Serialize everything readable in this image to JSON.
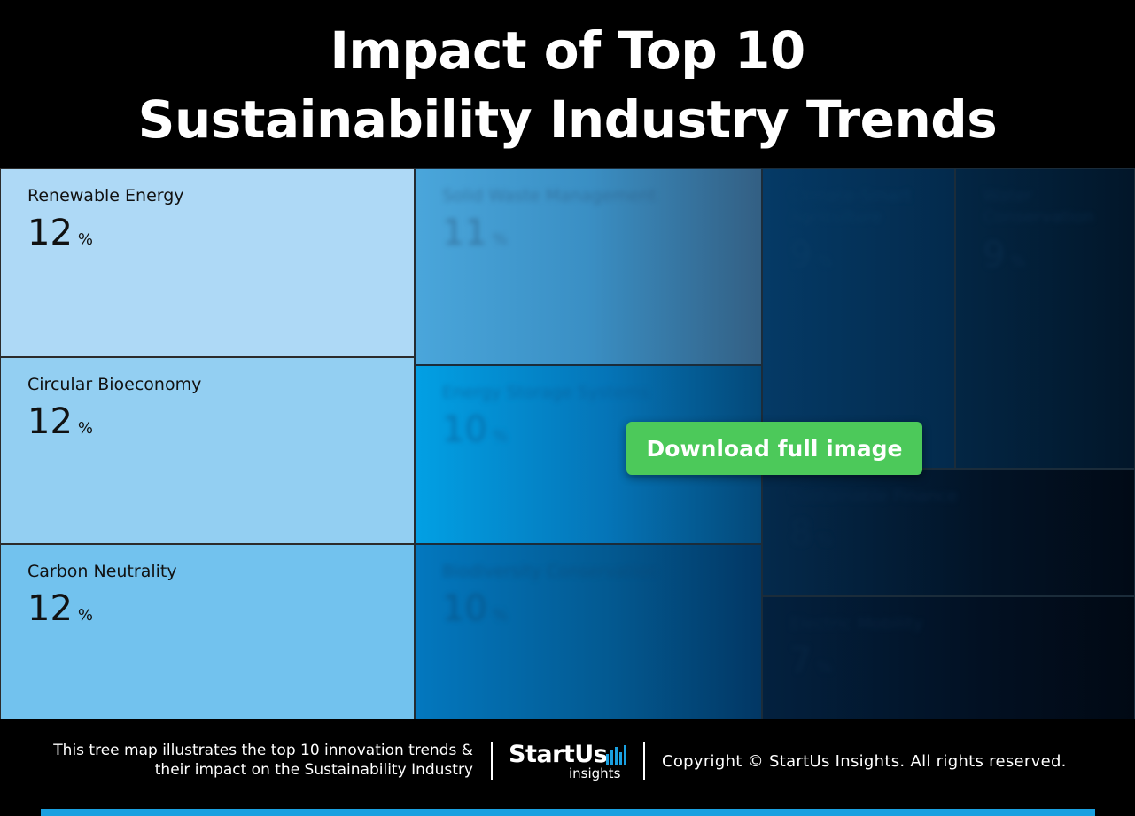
{
  "title_lines": [
    "Impact of Top 10",
    "Sustainability Industry Trends"
  ],
  "chart_data": {
    "type": "treemap",
    "title": "Impact of Top 10 Sustainability Industry Trends",
    "unit": "%",
    "items": [
      {
        "label": "Renewable Energy",
        "value": 12,
        "color": "#aed9f6",
        "text_color": "#111111",
        "blurred": false
      },
      {
        "label": "Circular Bioeconomy",
        "value": 12,
        "color": "#93cff2",
        "text_color": "#111111",
        "blurred": false
      },
      {
        "label": "Carbon Neutrality",
        "value": 12,
        "color": "#72c2ee",
        "text_color": "#111111",
        "blurred": false
      },
      {
        "label": "Solid Waste Management",
        "value": 11,
        "color": "#2b8ccc",
        "text_color": "#2c5e86",
        "blurred": true
      },
      {
        "label": "Energy Storage Systems",
        "value": 10,
        "color": "#037ec4",
        "text_color": "#0a5a92",
        "blurred": true
      },
      {
        "label": "Biodiversity Conservation",
        "value": 10,
        "color": "#0669a8",
        "text_color": "#0a4a78",
        "blurred": true
      },
      {
        "label": "Climate-Smart Agriculture",
        "value": 9,
        "color": "#04355d",
        "text_color": "#0b3f66",
        "blurred": true
      },
      {
        "label": "Water Conservation",
        "value": 9,
        "color": "#03223f",
        "text_color": "#0c3152",
        "blurred": true
      },
      {
        "label": "Sustainable Finance",
        "value": 8,
        "color": "#031d36",
        "text_color": "#0a2c4c",
        "blurred": true
      },
      {
        "label": "Electric Mobility",
        "value": 7,
        "color": "#021a33",
        "text_color": "#0a2a48",
        "blurred": true
      }
    ]
  },
  "download_button": "Download full image",
  "footer": {
    "description_lines": [
      "This tree map illustrates the top 10 innovation trends &",
      "their impact on the Sustainability Industry"
    ],
    "logo_brand": "StartUs",
    "logo_sub": "insights",
    "copyright": "Copyright © StartUs Insights. All rights reserved."
  },
  "colors": {
    "accent_bar": "#1aa0e0",
    "button": "#4cc95a"
  }
}
